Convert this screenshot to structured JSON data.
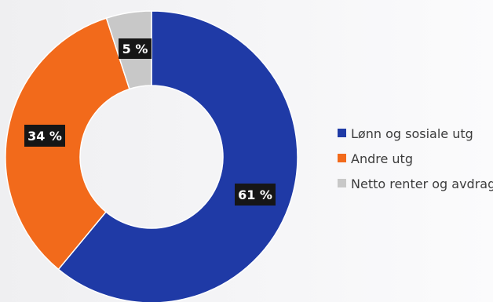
{
  "chart_data": {
    "type": "pie",
    "donut": true,
    "slices": [
      {
        "name": "Lønn og sosiale utg",
        "value": 61,
        "label": "61 %",
        "color": "#1f3aa6"
      },
      {
        "name": "Andre utg",
        "value": 34,
        "label": "34 %",
        "color": "#f26a1b"
      },
      {
        "name": "Netto renter og avdrag",
        "value": 5,
        "label": "5 %",
        "color": "#c8c8c8"
      }
    ],
    "legend_position": "right",
    "start_angle": "12 o'clock",
    "direction": "clockwise"
  }
}
